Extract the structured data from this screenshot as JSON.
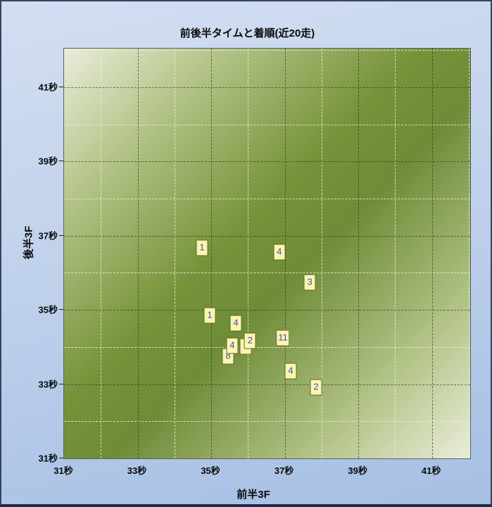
{
  "window": {
    "bg_top": "#d2def2",
    "bg_bottom": "#a6bfe4",
    "border_color": "#36435e"
  },
  "plot_style": {
    "bg_light": "#e9edda",
    "bg_dark": "#6f8c38",
    "grid_major_color": "rgba(42,46,36,0.62)",
    "grid_minor_color": "rgba(240,243,229,0.80)",
    "border_color": "#5d6253"
  },
  "chart_data": {
    "type": "scatter",
    "title": "前後半タイムと着順(近20走)",
    "xlabel": "前半3F",
    "ylabel": "後半3F",
    "tick_suffix": "秒",
    "xlim": [
      31,
      42.04
    ],
    "ylim": [
      31,
      42.04
    ],
    "x_major_ticks": [
      31,
      33,
      35,
      37,
      39,
      41
    ],
    "x_minor_ticks": [
      32,
      34,
      36,
      38,
      40,
      42
    ],
    "y_major_ticks": [
      31,
      33,
      35,
      37,
      39,
      41
    ],
    "y_minor_ticks": [
      32,
      34,
      36,
      38,
      40,
      42
    ],
    "grid": true,
    "legend": "none",
    "marker": {
      "shape": "square-label",
      "fill": "#faf6ae",
      "border": "#63682c",
      "text_color": "#4245c8"
    },
    "points": [
      {
        "x": 34.75,
        "y": 36.67,
        "label": "1"
      },
      {
        "x": 36.85,
        "y": 36.56,
        "label": "4"
      },
      {
        "x": 37.68,
        "y": 35.74,
        "label": "3"
      },
      {
        "x": 34.96,
        "y": 34.85,
        "label": "1"
      },
      {
        "x": 35.67,
        "y": 34.64,
        "label": "4"
      },
      {
        "x": 35.94,
        "y": 34.02,
        "label": "1"
      },
      {
        "x": 35.46,
        "y": 33.75,
        "label": "8"
      },
      {
        "x": 35.57,
        "y": 34.04,
        "label": "4"
      },
      {
        "x": 36.06,
        "y": 34.16,
        "label": "2"
      },
      {
        "x": 36.95,
        "y": 34.25,
        "label": "11"
      },
      {
        "x": 37.16,
        "y": 33.35,
        "label": "4"
      },
      {
        "x": 37.85,
        "y": 32.92,
        "label": "2"
      }
    ]
  }
}
